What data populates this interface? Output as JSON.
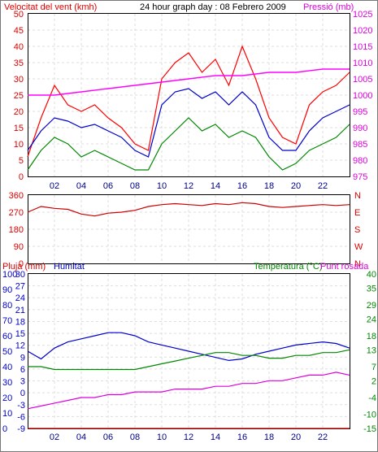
{
  "chart_data": [
    {
      "type": "line",
      "title": "24 hour graph day : 08 Febrero 2009",
      "left_axis_label": "Velocitat del vent (kmh)",
      "right_axis_label": "Pressió (mb)",
      "x_ticks": [
        "02",
        "04",
        "06",
        "08",
        "10",
        "12",
        "14",
        "16",
        "18",
        "20",
        "22"
      ],
      "ylim_left": [
        0,
        50
      ],
      "yticks_left": [
        "0",
        "5",
        "10",
        "15",
        "20",
        "25",
        "30",
        "35",
        "40",
        "45",
        "50"
      ],
      "ylim_right": [
        975,
        1025
      ],
      "yticks_right": [
        "975",
        "980",
        "985",
        "990",
        "995",
        "1000",
        "1005",
        "1010",
        "1015",
        "1020",
        "1025"
      ],
      "grid": true,
      "series": [
        {
          "name": "gust",
          "color": "#ff0000",
          "axis": "left",
          "x": [
            0,
            1,
            2,
            3,
            4,
            5,
            6,
            7,
            8,
            9,
            10,
            11,
            12,
            13,
            14,
            15,
            16,
            17,
            18,
            19,
            20,
            21,
            22,
            23,
            24
          ],
          "values": [
            6,
            18,
            28,
            22,
            20,
            22,
            18,
            15,
            10,
            8,
            30,
            35,
            38,
            32,
            36,
            28,
            40,
            30,
            18,
            12,
            10,
            22,
            26,
            28,
            32
          ]
        },
        {
          "name": "wind",
          "color": "#0000cc",
          "axis": "left",
          "x": [
            0,
            1,
            2,
            3,
            4,
            5,
            6,
            7,
            8,
            9,
            10,
            11,
            12,
            13,
            14,
            15,
            16,
            17,
            18,
            19,
            20,
            21,
            22,
            23,
            24
          ],
          "values": [
            8,
            14,
            18,
            17,
            15,
            16,
            14,
            12,
            8,
            6,
            22,
            26,
            27,
            24,
            26,
            22,
            26,
            22,
            12,
            8,
            8,
            14,
            18,
            20,
            22
          ]
        },
        {
          "name": "wind-min",
          "color": "#008800",
          "axis": "left",
          "x": [
            0,
            1,
            2,
            3,
            4,
            5,
            6,
            7,
            8,
            9,
            10,
            11,
            12,
            13,
            14,
            15,
            16,
            17,
            18,
            19,
            20,
            21,
            22,
            23,
            24
          ],
          "values": [
            2,
            8,
            12,
            10,
            6,
            8,
            6,
            4,
            2,
            2,
            10,
            14,
            18,
            14,
            16,
            12,
            14,
            12,
            6,
            2,
            4,
            8,
            10,
            12,
            16
          ]
        },
        {
          "name": "pressure",
          "color": "#ff00ff",
          "axis": "right",
          "x": [
            0,
            2,
            4,
            6,
            8,
            10,
            12,
            14,
            16,
            18,
            20,
            22,
            24
          ],
          "values": [
            1000,
            1000,
            1001,
            1002,
            1003,
            1004,
            1005,
            1006,
            1006,
            1007,
            1007,
            1008,
            1008
          ]
        }
      ]
    },
    {
      "type": "line",
      "ylim_left": [
        0,
        360
      ],
      "yticks_left": [
        "0",
        "90",
        "180",
        "270",
        "360"
      ],
      "yticks_right": [
        "N",
        "E",
        "S",
        "W",
        "N"
      ],
      "grid": true,
      "series": [
        {
          "name": "direction",
          "color": "#cc0000",
          "axis": "left",
          "x": [
            0,
            1,
            2,
            3,
            4,
            5,
            6,
            7,
            8,
            9,
            10,
            11,
            12,
            13,
            14,
            15,
            16,
            17,
            18,
            19,
            20,
            21,
            22,
            23,
            24
          ],
          "values": [
            270,
            300,
            290,
            285,
            260,
            250,
            265,
            270,
            280,
            300,
            310,
            315,
            310,
            305,
            315,
            310,
            320,
            315,
            300,
            295,
            300,
            305,
            310,
            305,
            310
          ]
        }
      ]
    },
    {
      "type": "line",
      "left_axis_label": "Pluja (mm)",
      "left_axis_label2": "Humitat",
      "right_axis_label": "Temperatura (°C)",
      "right_axis_label2": "Punt rosada",
      "yticks_rain": [
        "0",
        "10",
        "20",
        "30",
        "40",
        "50",
        "60",
        "70",
        "80",
        "90",
        "100"
      ],
      "yticks_left": [
        "-9",
        "-6",
        "-3",
        "0",
        "3",
        "6",
        "9",
        "12",
        "15",
        "18",
        "21",
        "24",
        "27",
        "30"
      ],
      "ylim_left": [
        -9,
        30
      ],
      "yticks_right": [
        "-15",
        "-10",
        "-4",
        "2",
        "7",
        "13",
        "18",
        "24",
        "29",
        "35",
        "40"
      ],
      "ylim_right": [
        -15,
        40
      ],
      "grid": true,
      "series": [
        {
          "name": "rain",
          "color": "#cc0000",
          "axis": "left",
          "x": [
            0,
            24
          ],
          "values": [
            0,
            0
          ]
        },
        {
          "name": "humidity",
          "color": "#0000cc",
          "axis": "left",
          "x": [
            0,
            1,
            2,
            3,
            4,
            5,
            6,
            7,
            8,
            9,
            10,
            11,
            12,
            13,
            14,
            15,
            16,
            17,
            18,
            19,
            20,
            21,
            22,
            23,
            24
          ],
          "values": [
            50,
            45,
            52,
            56,
            58,
            60,
            62,
            62,
            60,
            56,
            54,
            52,
            50,
            48,
            46,
            44,
            45,
            48,
            50,
            52,
            54,
            55,
            56,
            55,
            52
          ]
        },
        {
          "name": "temperature",
          "color": "#008800",
          "axis": "right",
          "x": [
            0,
            1,
            2,
            3,
            4,
            5,
            6,
            7,
            8,
            9,
            10,
            11,
            12,
            13,
            14,
            15,
            16,
            17,
            18,
            19,
            20,
            21,
            22,
            23,
            24
          ],
          "values": [
            7,
            7,
            6,
            6,
            6,
            6,
            6,
            6,
            6,
            7,
            8,
            9,
            10,
            11,
            12,
            12,
            11,
            11,
            10,
            10,
            11,
            11,
            12,
            12,
            13
          ]
        },
        {
          "name": "dewpoint",
          "color": "#dd00dd",
          "axis": "right",
          "x": [
            0,
            1,
            2,
            3,
            4,
            5,
            6,
            7,
            8,
            9,
            10,
            11,
            12,
            13,
            14,
            15,
            16,
            17,
            18,
            19,
            20,
            21,
            22,
            23,
            24
          ],
          "values": [
            -8,
            -7,
            -6,
            -5,
            -4,
            -4,
            -3,
            -3,
            -2,
            -2,
            -2,
            -1,
            -1,
            -1,
            0,
            0,
            1,
            1,
            2,
            2,
            3,
            4,
            4,
            5,
            4
          ]
        }
      ]
    }
  ]
}
